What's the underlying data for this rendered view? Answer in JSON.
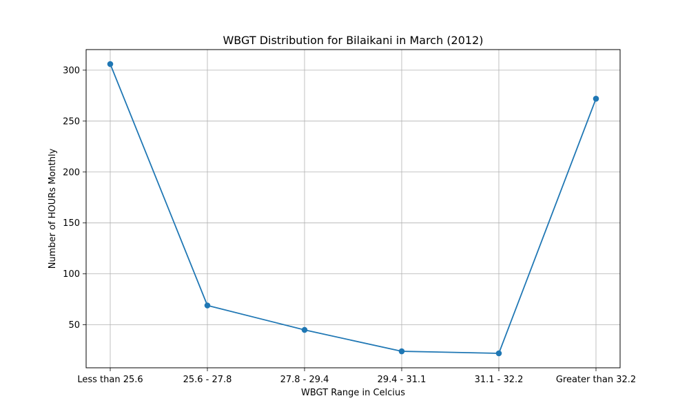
{
  "chart_data": {
    "type": "line",
    "title": "WBGT Distribution for Bilaikani in March (2012)",
    "xlabel": "WBGT Range in Celcius",
    "ylabel": "Number of HOURs Monthly",
    "categories": [
      "Less than 25.6",
      "25.6 - 27.8",
      "27.8 - 29.4",
      "29.4 - 31.1",
      "31.1 - 32.2",
      "Greater than 32.2"
    ],
    "series": [
      {
        "values": [
          306,
          69,
          45,
          24,
          22,
          272
        ],
        "color": "#1f77b4"
      }
    ],
    "ylim": [
      7.8,
      320.2
    ],
    "yticks": [
      50,
      100,
      150,
      200,
      250,
      300
    ],
    "grid": true,
    "legend": false
  }
}
